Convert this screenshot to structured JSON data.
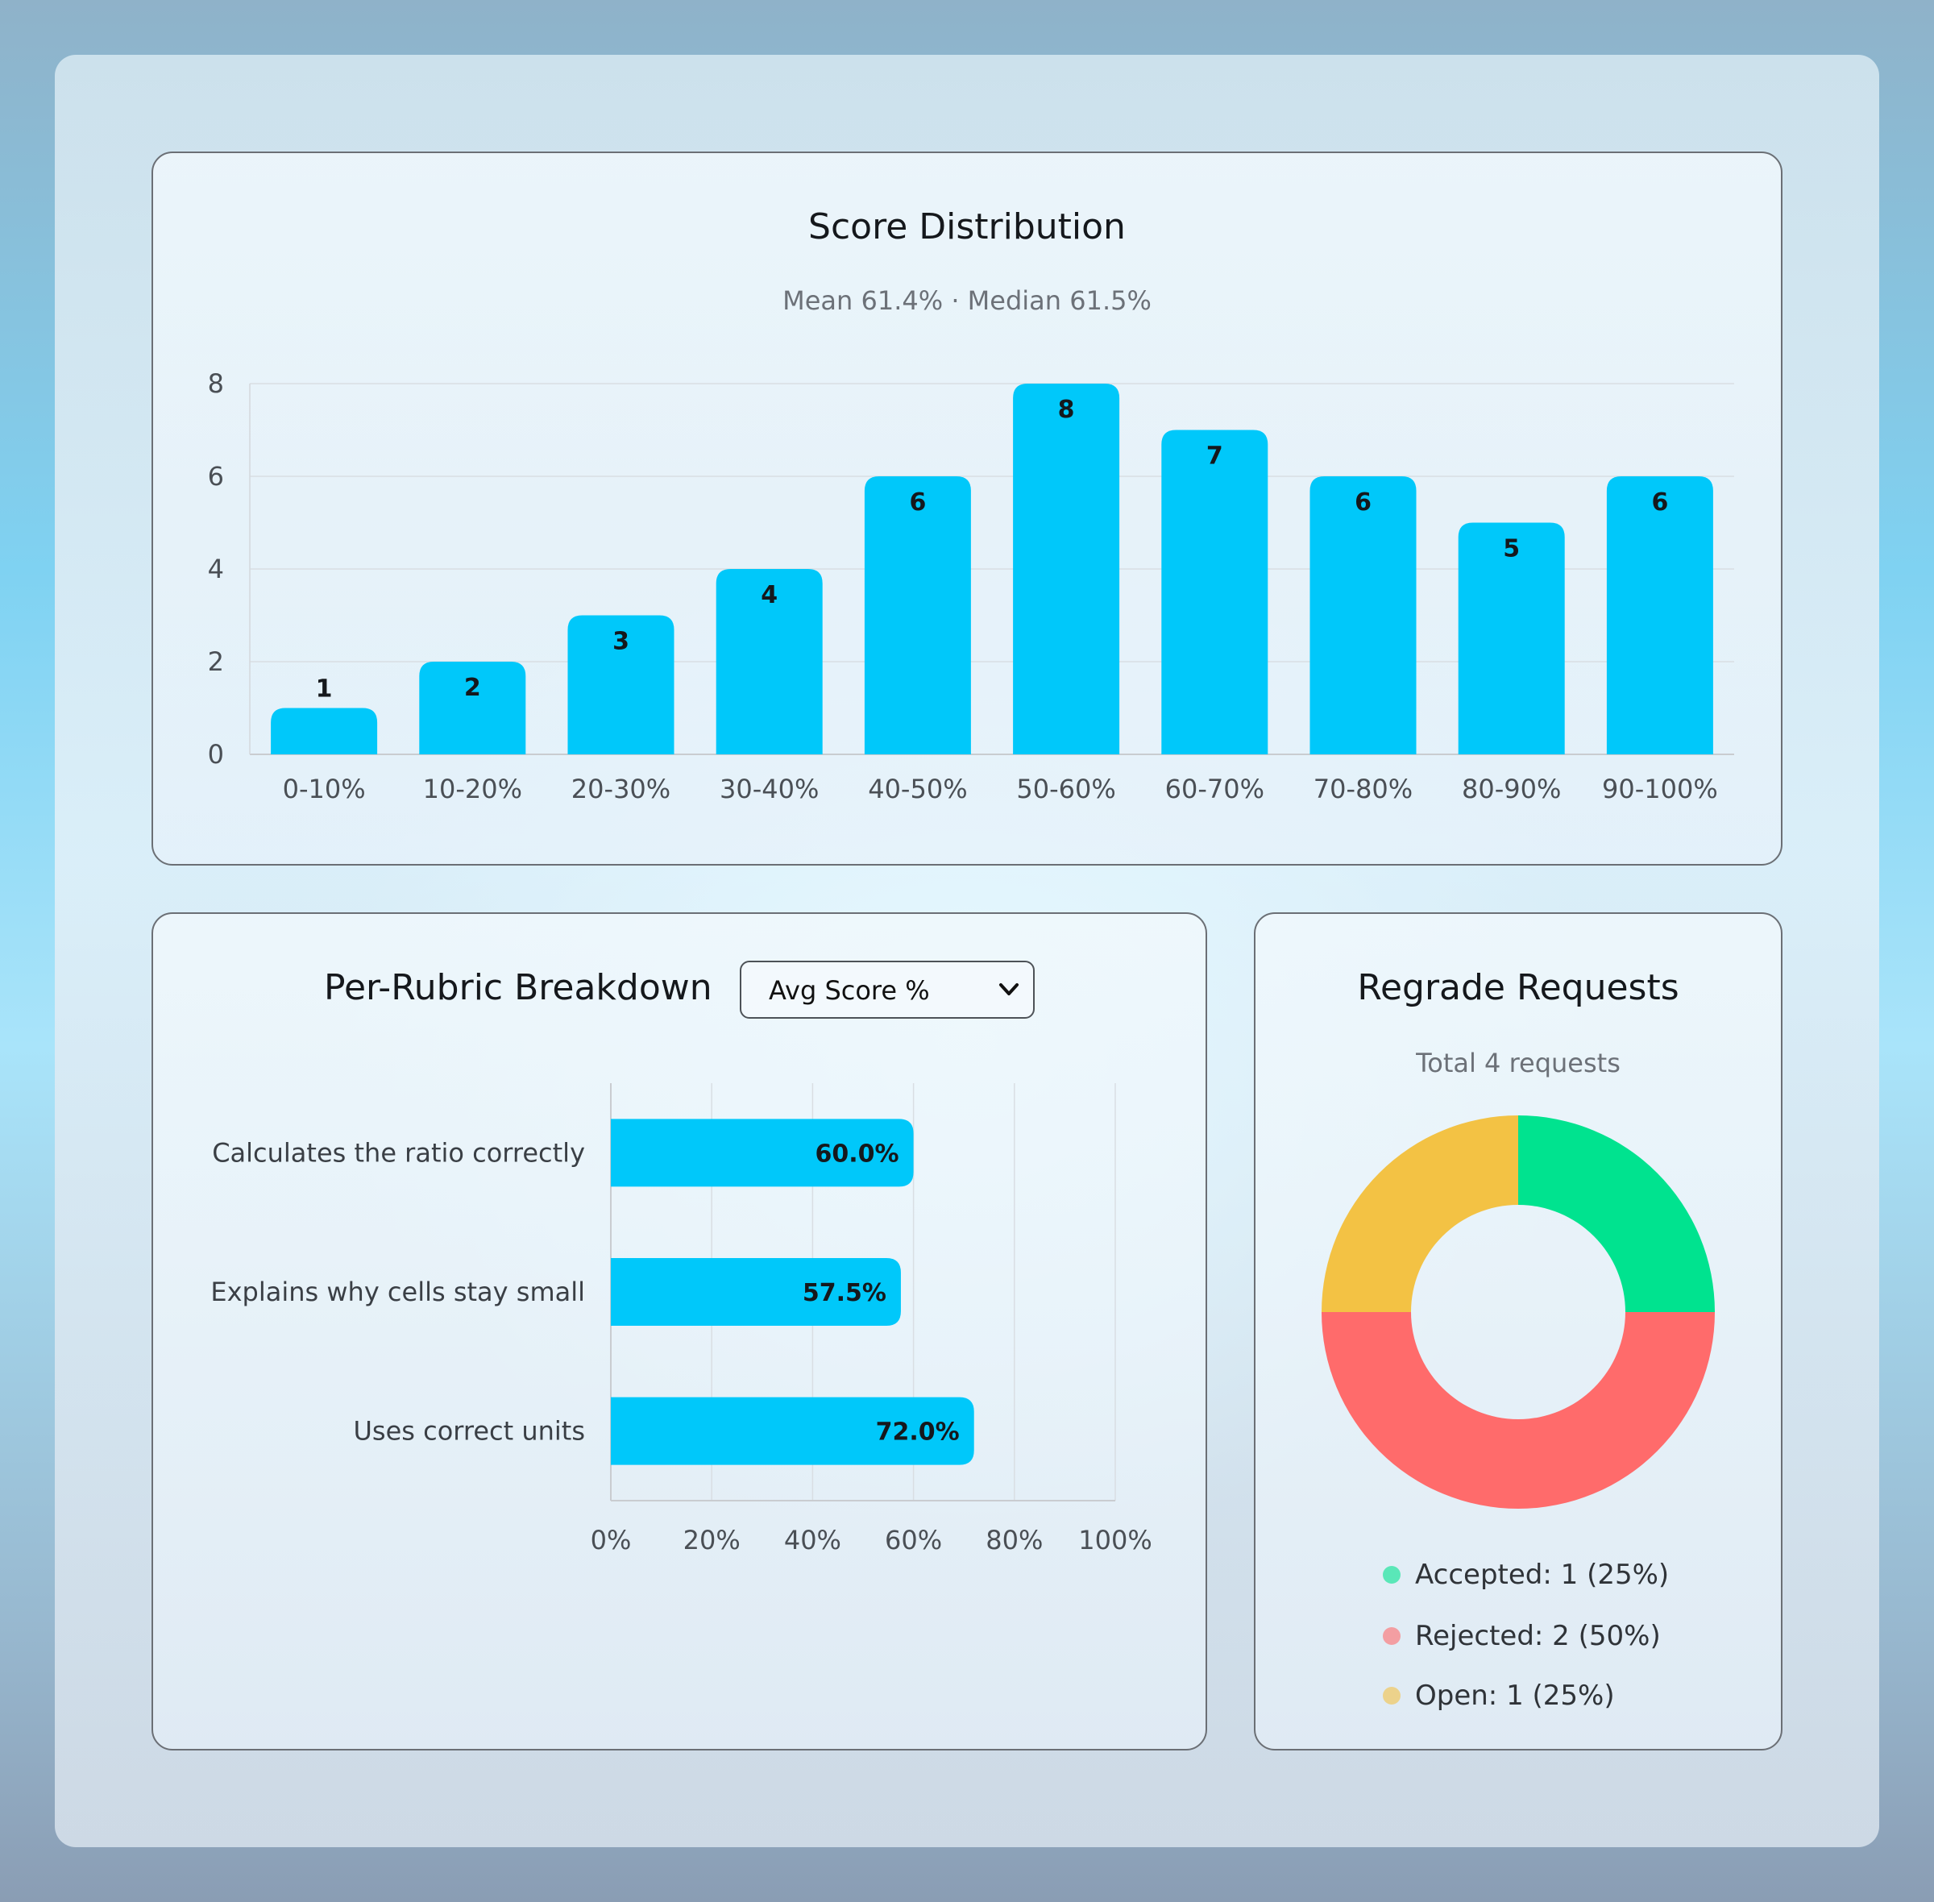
{
  "colors": {
    "bar": "#00c8fa",
    "accepted": "#00e38f",
    "rejected": "#ff6b6b",
    "open": "#f3c244"
  },
  "distribution": {
    "title": "Score Distribution",
    "subtitle": "Mean 61.4% · Median 61.5%"
  },
  "rubric": {
    "title": "Per-Rubric Breakdown",
    "select_value": "Avg Score %",
    "select_icon": "chevron-down-icon"
  },
  "regrade": {
    "title": "Regrade Requests",
    "subtitle": "Total 4 requests",
    "legend": [
      {
        "label": "Accepted: 1 (25%)",
        "color": "#00e38f"
      },
      {
        "label": "Rejected: 2 (50%)",
        "color": "#ff6b6b"
      },
      {
        "label": "Open: 1 (25%)",
        "color": "#f3c244"
      }
    ]
  },
  "chart_data": [
    {
      "type": "bar",
      "title": "Score Distribution",
      "subtitle": "Mean 61.4% · Median 61.5%",
      "categories": [
        "0-10%",
        "10-20%",
        "20-30%",
        "30-40%",
        "40-50%",
        "50-60%",
        "60-70%",
        "70-80%",
        "80-90%",
        "90-100%"
      ],
      "values": [
        1,
        2,
        3,
        4,
        6,
        8,
        7,
        6,
        5,
        6
      ],
      "ylim": [
        0,
        8
      ],
      "yticks": [
        "0",
        "2",
        "4",
        "6",
        "8"
      ],
      "grid": true,
      "data_labels": true
    },
    {
      "type": "bar",
      "orientation": "horizontal",
      "title": "Per-Rubric Breakdown",
      "categories": [
        "Calculates the ratio correctly",
        "Explains why cells stay small",
        "Uses correct units"
      ],
      "values": [
        60.0,
        57.5,
        72.0
      ],
      "value_labels": [
        "60.0%",
        "57.5%",
        "72.0%"
      ],
      "xlim": [
        0,
        100
      ],
      "xticks": [
        "0%",
        "20%",
        "40%",
        "60%",
        "80%",
        "100%"
      ],
      "grid": true
    },
    {
      "type": "pie",
      "style": "donut",
      "title": "Regrade Requests",
      "subtitle": "Total 4 requests",
      "categories": [
        "Accepted",
        "Rejected",
        "Open"
      ],
      "values": [
        1,
        2,
        1
      ],
      "colors": [
        "#00e38f",
        "#ff6b6b",
        "#f3c244"
      ],
      "legend": "bottom"
    }
  ]
}
